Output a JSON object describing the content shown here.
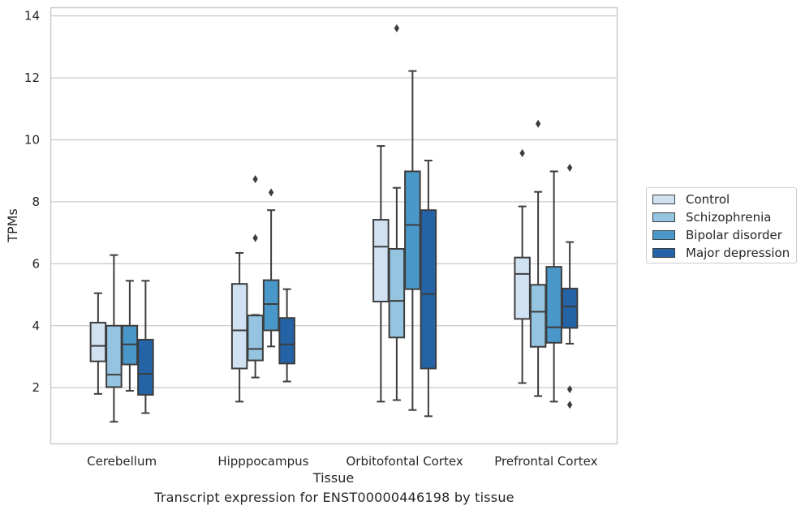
{
  "caption": "Transcript expression for ENST00000446198 by tissue",
  "colors": {
    "Control": "#d0e1f2",
    "Schizophrenia": "#94c4df",
    "Bipolar disorder": "#4a98c9",
    "Major depression": "#2363a6"
  },
  "chart_data": {
    "type": "box",
    "xlabel": "Tissue",
    "ylabel": "TPMs",
    "ylim": [
      0.2,
      14.25
    ],
    "yticks": [
      2,
      4,
      6,
      8,
      10,
      12,
      14
    ],
    "grid": "horizontal",
    "legend_position": "right",
    "categories": [
      "Cerebellum",
      "Hipppocampus",
      "Orbitofontal Cortex",
      "Prefrontal Cortex"
    ],
    "series": [
      {
        "name": "Control",
        "boxes": [
          {
            "whislo": 1.8,
            "q1": 2.85,
            "med": 3.35,
            "q3": 4.1,
            "whishi": 5.05,
            "fliers": []
          },
          {
            "whislo": 1.55,
            "q1": 2.62,
            "med": 3.85,
            "q3": 5.35,
            "whishi": 6.35,
            "fliers": []
          },
          {
            "whislo": 1.55,
            "q1": 4.78,
            "med": 6.55,
            "q3": 7.42,
            "whishi": 9.8,
            "fliers": []
          },
          {
            "whislo": 2.15,
            "q1": 4.22,
            "med": 5.67,
            "q3": 6.2,
            "whishi": 7.85,
            "fliers": [
              9.57
            ]
          }
        ]
      },
      {
        "name": "Schizophrenia",
        "boxes": [
          {
            "whislo": 0.9,
            "q1": 2.02,
            "med": 2.42,
            "q3": 4.0,
            "whishi": 6.28,
            "fliers": []
          },
          {
            "whislo": 2.33,
            "q1": 2.88,
            "med": 3.25,
            "q3": 4.33,
            "whishi": 4.35,
            "fliers": [
              6.83,
              8.73
            ]
          },
          {
            "whislo": 1.6,
            "q1": 3.62,
            "med": 4.8,
            "q3": 6.48,
            "whishi": 8.45,
            "fliers": [
              13.6
            ]
          },
          {
            "whislo": 1.73,
            "q1": 3.32,
            "med": 4.45,
            "q3": 5.32,
            "whishi": 8.32,
            "fliers": [
              10.52
            ]
          }
        ]
      },
      {
        "name": "Bipolar disorder",
        "boxes": [
          {
            "whislo": 1.9,
            "q1": 2.75,
            "med": 3.4,
            "q3": 4.0,
            "whishi": 5.45,
            "fliers": []
          },
          {
            "whislo": 3.33,
            "q1": 3.85,
            "med": 4.7,
            "q3": 5.47,
            "whishi": 7.73,
            "fliers": [
              8.3
            ]
          },
          {
            "whislo": 1.28,
            "q1": 5.18,
            "med": 7.25,
            "q3": 8.98,
            "whishi": 12.22,
            "fliers": []
          },
          {
            "whislo": 1.55,
            "q1": 3.45,
            "med": 3.95,
            "q3": 5.9,
            "whishi": 8.98,
            "fliers": []
          }
        ]
      },
      {
        "name": "Major depression",
        "boxes": [
          {
            "whislo": 1.18,
            "q1": 1.77,
            "med": 2.45,
            "q3": 3.55,
            "whishi": 5.45,
            "fliers": []
          },
          {
            "whislo": 2.2,
            "q1": 2.78,
            "med": 3.4,
            "q3": 4.25,
            "whishi": 5.18,
            "fliers": []
          },
          {
            "whislo": 1.08,
            "q1": 2.62,
            "med": 5.02,
            "q3": 7.73,
            "whishi": 9.33,
            "fliers": []
          },
          {
            "whislo": 3.42,
            "q1": 3.93,
            "med": 4.62,
            "q3": 5.2,
            "whishi": 6.7,
            "fliers": [
              9.1,
              1.95,
              1.45
            ]
          }
        ]
      }
    ]
  }
}
